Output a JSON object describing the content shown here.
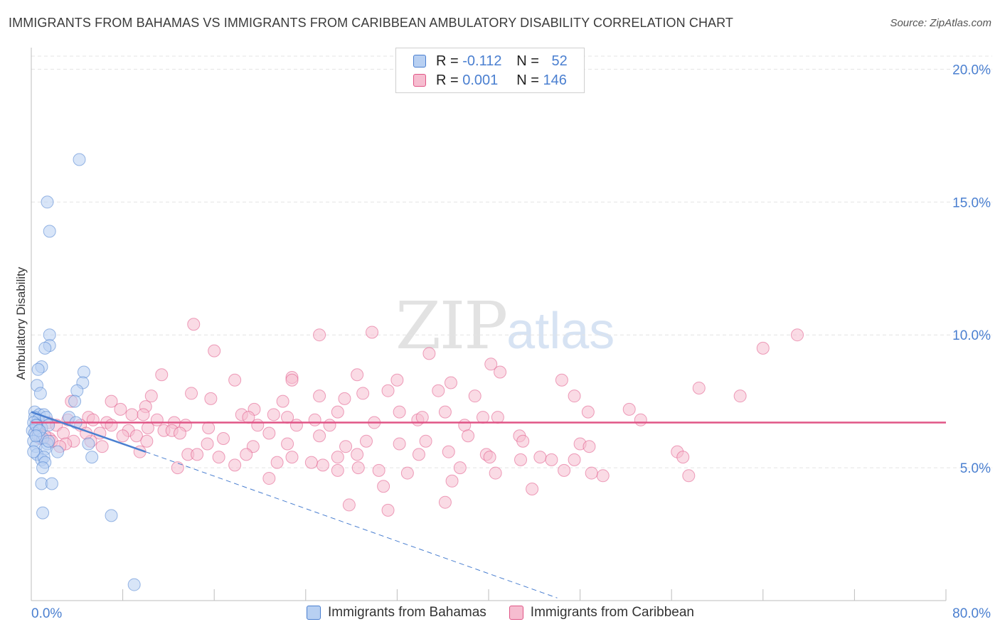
{
  "title": "IMMIGRANTS FROM BAHAMAS VS IMMIGRANTS FROM CARIBBEAN AMBULATORY DISABILITY CORRELATION CHART",
  "source": "Source: ZipAtlas.com",
  "watermark": {
    "zip": "ZIP",
    "atlas": "atlas"
  },
  "colors": {
    "blue": "#4a7fd0",
    "blue_fill": "#b8d0f2",
    "pink": "#e05586",
    "pink_fill": "#f6bdd0",
    "axis_text": "#4a7fd0",
    "grid": "#e4e4e4"
  },
  "legend": {
    "rows": [
      {
        "r_label": "R = ",
        "r_value": "-0.112",
        "n_label": "N = ",
        "n_value": "52"
      },
      {
        "r_label": "R = ",
        "r_value": "0.001",
        "n_label": "N = ",
        "n_value": "146"
      }
    ]
  },
  "bottom_legend": [
    "Immigrants from Bahamas",
    "Immigrants from Caribbean"
  ],
  "chart_data": {
    "type": "scatter",
    "title": "IMMIGRANTS FROM BAHAMAS VS IMMIGRANTS FROM CARIBBEAN AMBULATORY DISABILITY CORRELATION CHART",
    "xlabel": "",
    "ylabel": "Ambulatory Disability",
    "xlim": [
      0,
      80
    ],
    "ylim": [
      0,
      21
    ],
    "x_tick_labels": [
      "0.0%",
      "80.0%"
    ],
    "y_ticks": [
      5,
      10,
      15,
      20
    ],
    "y_tick_labels": [
      "5.0%",
      "10.0%",
      "15.0%",
      "20.0%"
    ],
    "grid": true,
    "legend_position": "top-center",
    "series": [
      {
        "name": "Immigrants from Bahamas",
        "color": "#4a7fd0",
        "trend": {
          "x": [
            0,
            10
          ],
          "y": [
            7.1,
            5.6
          ],
          "extended_to": [
            46,
            0.1
          ]
        },
        "points": [
          [
            4.2,
            16.6
          ],
          [
            1.4,
            15.0
          ],
          [
            1.6,
            13.9
          ],
          [
            1.6,
            10.0
          ],
          [
            1.6,
            9.6
          ],
          [
            1.2,
            9.5
          ],
          [
            0.9,
            8.8
          ],
          [
            0.6,
            8.7
          ],
          [
            4.6,
            8.6
          ],
          [
            4.5,
            8.2
          ],
          [
            0.5,
            8.1
          ],
          [
            0.8,
            7.8
          ],
          [
            4.0,
            7.9
          ],
          [
            3.8,
            7.5
          ],
          [
            0.3,
            7.1
          ],
          [
            0.7,
            7.0
          ],
          [
            1.1,
            7.0
          ],
          [
            0.3,
            6.9
          ],
          [
            0.6,
            6.8
          ],
          [
            1.3,
            6.9
          ],
          [
            3.3,
            6.9
          ],
          [
            0.2,
            6.7
          ],
          [
            0.5,
            6.6
          ],
          [
            0.9,
            6.5
          ],
          [
            1.5,
            6.6
          ],
          [
            3.9,
            6.7
          ],
          [
            0.1,
            6.4
          ],
          [
            0.3,
            6.3
          ],
          [
            0.6,
            6.2
          ],
          [
            1.0,
            6.1
          ],
          [
            0.2,
            6.0
          ],
          [
            1.4,
            5.9
          ],
          [
            5.0,
            5.9
          ],
          [
            0.4,
            5.8
          ],
          [
            1.2,
            5.7
          ],
          [
            2.3,
            5.6
          ],
          [
            0.5,
            5.5
          ],
          [
            0.9,
            5.3
          ],
          [
            1.1,
            5.4
          ],
          [
            5.3,
            5.4
          ],
          [
            1.2,
            5.2
          ],
          [
            1.0,
            5.0
          ],
          [
            0.9,
            4.4
          ],
          [
            1.8,
            4.4
          ],
          [
            1.0,
            3.3
          ],
          [
            7.0,
            3.2
          ],
          [
            9.0,
            0.6
          ],
          [
            0.4,
            6.6
          ],
          [
            0.2,
            5.6
          ],
          [
            1.5,
            6.0
          ],
          [
            0.7,
            6.4
          ],
          [
            0.4,
            6.2
          ]
        ]
      },
      {
        "name": "Immigrants from Caribbean",
        "color": "#e05586",
        "trend": {
          "x": [
            0,
            80
          ],
          "y": [
            6.7,
            6.7
          ]
        },
        "points": [
          [
            14.2,
            10.4
          ],
          [
            25.2,
            10.0
          ],
          [
            29.8,
            10.1
          ],
          [
            67.0,
            10.0
          ],
          [
            64.0,
            9.5
          ],
          [
            16.0,
            9.4
          ],
          [
            34.8,
            9.3
          ],
          [
            40.2,
            8.9
          ],
          [
            41.0,
            8.6
          ],
          [
            11.4,
            8.5
          ],
          [
            28.5,
            8.5
          ],
          [
            22.8,
            8.4
          ],
          [
            22.8,
            8.3
          ],
          [
            17.8,
            8.3
          ],
          [
            32.0,
            8.3
          ],
          [
            36.7,
            8.2
          ],
          [
            46.4,
            8.3
          ],
          [
            58.4,
            8.0
          ],
          [
            62.0,
            7.7
          ],
          [
            14.0,
            7.8
          ],
          [
            25.2,
            7.7
          ],
          [
            29.0,
            7.8
          ],
          [
            31.2,
            7.9
          ],
          [
            35.6,
            7.9
          ],
          [
            38.8,
            7.7
          ],
          [
            47.5,
            7.7
          ],
          [
            15.7,
            7.6
          ],
          [
            22.0,
            7.5
          ],
          [
            27.4,
            7.6
          ],
          [
            3.5,
            7.5
          ],
          [
            7.0,
            7.5
          ],
          [
            10.5,
            7.7
          ],
          [
            7.8,
            7.2
          ],
          [
            10.0,
            7.3
          ],
          [
            19.5,
            7.2
          ],
          [
            21.2,
            7.0
          ],
          [
            26.8,
            7.1
          ],
          [
            32.2,
            7.1
          ],
          [
            36.2,
            7.1
          ],
          [
            48.7,
            7.1
          ],
          [
            52.3,
            7.2
          ],
          [
            8.8,
            7.0
          ],
          [
            9.8,
            7.0
          ],
          [
            18.4,
            7.0
          ],
          [
            19.0,
            6.9
          ],
          [
            22.4,
            6.9
          ],
          [
            24.8,
            6.8
          ],
          [
            30.0,
            6.7
          ],
          [
            33.8,
            6.8
          ],
          [
            34.2,
            6.9
          ],
          [
            39.5,
            6.9
          ],
          [
            40.8,
            6.9
          ],
          [
            53.3,
            6.8
          ],
          [
            3.2,
            6.8
          ],
          [
            5.0,
            6.9
          ],
          [
            5.4,
            6.8
          ],
          [
            6.6,
            6.7
          ],
          [
            7.0,
            6.6
          ],
          [
            12.5,
            6.7
          ],
          [
            13.5,
            6.6
          ],
          [
            15.5,
            6.5
          ],
          [
            19.8,
            6.6
          ],
          [
            23.2,
            6.6
          ],
          [
            26.1,
            6.6
          ],
          [
            37.9,
            6.6
          ],
          [
            1.5,
            6.7
          ],
          [
            2.2,
            6.6
          ],
          [
            4.3,
            6.6
          ],
          [
            8.5,
            6.4
          ],
          [
            10.2,
            6.5
          ],
          [
            11.6,
            6.4
          ],
          [
            12.3,
            6.4
          ],
          [
            6.0,
            6.3
          ],
          [
            8.0,
            6.2
          ],
          [
            9.2,
            6.2
          ],
          [
            13.0,
            6.3
          ],
          [
            20.8,
            6.3
          ],
          [
            25.2,
            6.2
          ],
          [
            34.5,
            6.0
          ],
          [
            38.2,
            6.2
          ],
          [
            42.7,
            6.2
          ],
          [
            1.6,
            6.1
          ],
          [
            3.7,
            6.0
          ],
          [
            5.2,
            6.0
          ],
          [
            10.1,
            6.0
          ],
          [
            15.4,
            5.9
          ],
          [
            19.4,
            5.8
          ],
          [
            22.4,
            5.9
          ],
          [
            27.5,
            5.8
          ],
          [
            32.2,
            5.9
          ],
          [
            43.0,
            6.0
          ],
          [
            48.0,
            5.9
          ],
          [
            48.8,
            5.8
          ],
          [
            56.5,
            5.6
          ],
          [
            57.0,
            5.4
          ],
          [
            13.7,
            5.5
          ],
          [
            18.8,
            5.5
          ],
          [
            22.8,
            5.4
          ],
          [
            26.8,
            5.4
          ],
          [
            28.5,
            5.5
          ],
          [
            33.9,
            5.5
          ],
          [
            36.5,
            5.6
          ],
          [
            39.8,
            5.5
          ],
          [
            40.1,
            5.4
          ],
          [
            42.8,
            5.3
          ],
          [
            44.5,
            5.4
          ],
          [
            45.5,
            5.3
          ],
          [
            47.5,
            5.3
          ],
          [
            25.5,
            5.1
          ],
          [
            26.8,
            4.9
          ],
          [
            28.6,
            5.0
          ],
          [
            30.4,
            4.9
          ],
          [
            32.9,
            4.8
          ],
          [
            36.8,
            4.5
          ],
          [
            40.6,
            4.8
          ],
          [
            46.6,
            4.9
          ],
          [
            50.0,
            4.7
          ],
          [
            57.5,
            4.7
          ],
          [
            36.2,
            3.7
          ],
          [
            27.8,
            3.6
          ],
          [
            31.2,
            3.4
          ],
          [
            4.8,
            6.3
          ],
          [
            2.8,
            6.3
          ],
          [
            3.0,
            5.9
          ],
          [
            1.2,
            6.2
          ],
          [
            0.6,
            6.3
          ],
          [
            0.8,
            6.1
          ],
          [
            1.8,
            6.0
          ],
          [
            2.5,
            5.8
          ],
          [
            6.2,
            5.8
          ],
          [
            9.5,
            5.6
          ],
          [
            14.5,
            5.5
          ],
          [
            16.4,
            5.4
          ],
          [
            21.5,
            5.2
          ],
          [
            24.5,
            5.2
          ],
          [
            17.8,
            5.1
          ],
          [
            12.8,
            5.0
          ],
          [
            20.8,
            4.6
          ],
          [
            30.8,
            4.3
          ],
          [
            43.8,
            4.2
          ],
          [
            49.0,
            4.8
          ],
          [
            37.5,
            5.0
          ],
          [
            29.3,
            6.0
          ],
          [
            16.8,
            6.1
          ],
          [
            11.0,
            6.8
          ],
          [
            0.5,
            6.5
          ]
        ]
      }
    ]
  }
}
